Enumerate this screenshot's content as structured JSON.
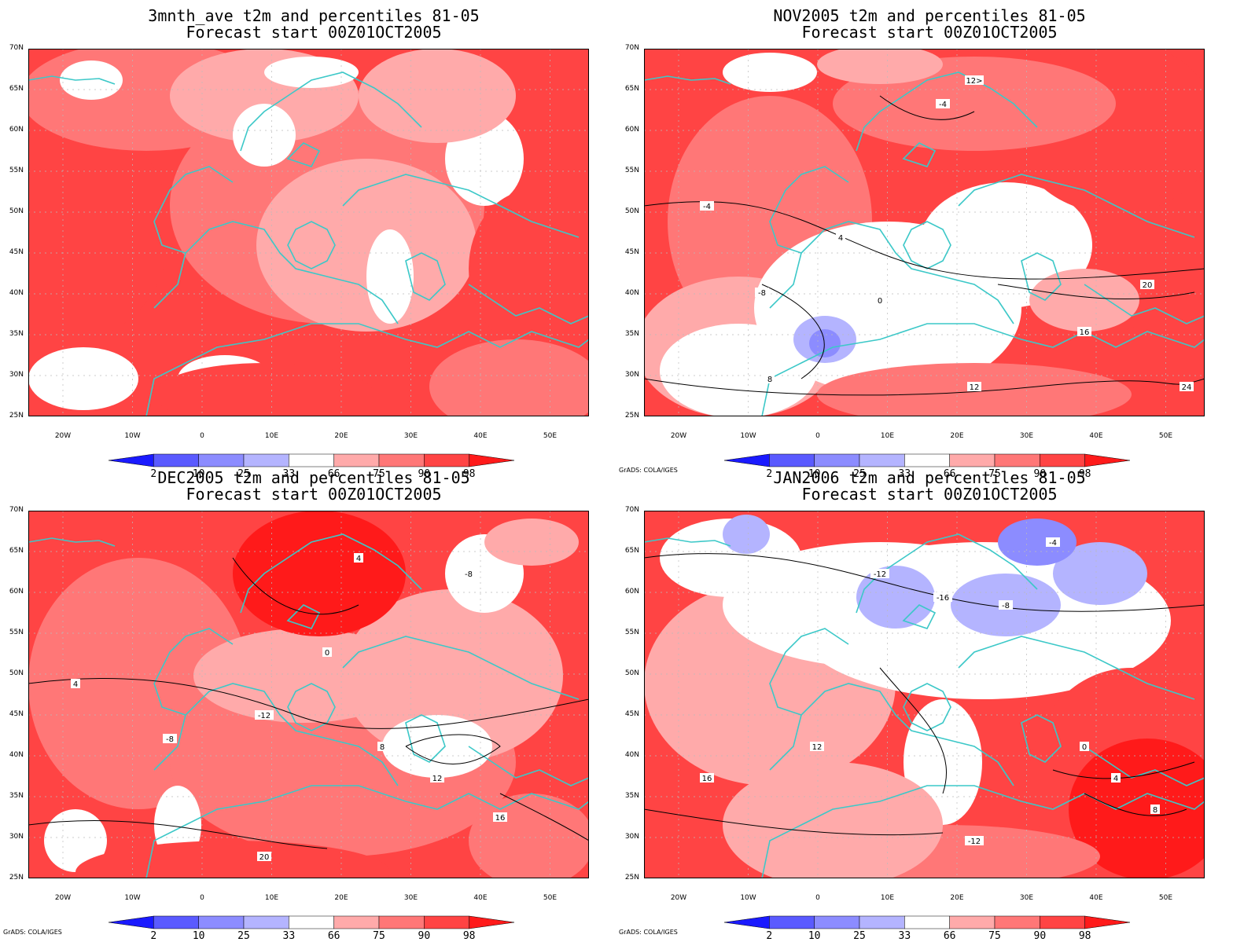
{
  "panels": [
    {
      "title": "3mnth_ave t2m and percentiles 81-05",
      "subtitle": "Forecast start 00Z01OCT2005",
      "credit": ""
    },
    {
      "title": "NOV2005 t2m and percentiles 81-05",
      "subtitle": "Forecast start 00Z01OCT2005",
      "credit": "GrADS: COLA/IGES"
    },
    {
      "title": "DEC2005 t2m and percentiles 81-05",
      "subtitle": "Forecast start 00Z01OCT2005",
      "credit": "GrADS: COLA/IGES"
    },
    {
      "title": "JAN2006 t2m and percentiles 81-05",
      "subtitle": "Forecast start 00Z01OCT2005",
      "credit": "GrADS: COLA/IGES"
    }
  ],
  "lat_labels": [
    "70N",
    "65N",
    "60N",
    "55N",
    "50N",
    "45N",
    "40N",
    "35N",
    "30N",
    "25N"
  ],
  "lon_labels": [
    "20W",
    "10W",
    "0",
    "10E",
    "20E",
    "30E",
    "40E",
    "50E"
  ],
  "colorbar": {
    "labels": [
      "2",
      "10",
      "25",
      "33",
      "66",
      "75",
      "90",
      "98"
    ],
    "colors": [
      "#1a1aff",
      "#5a5aff",
      "#8c8cff",
      "#b4b4ff",
      "#ffffff",
      "#ffaaaa",
      "#ff7777",
      "#ff4444",
      "#ff1a1a"
    ]
  },
  "map_colors": {
    "ocean_base": "#ff4444",
    "coast": "#3cc8c8",
    "contour": "#000000"
  },
  "contour_labels": {
    "nov": [
      "-4",
      "-8",
      "4",
      "0",
      "8",
      "12",
      "16",
      "20",
      "24",
      "12>"
    ],
    "dec": [
      "4",
      "-8",
      "-12",
      "0",
      "8",
      "12",
      "16",
      "20"
    ],
    "jan": [
      "-12",
      "-16",
      "-8",
      "-4",
      "0",
      "4",
      "8",
      "12",
      "16"
    ]
  }
}
